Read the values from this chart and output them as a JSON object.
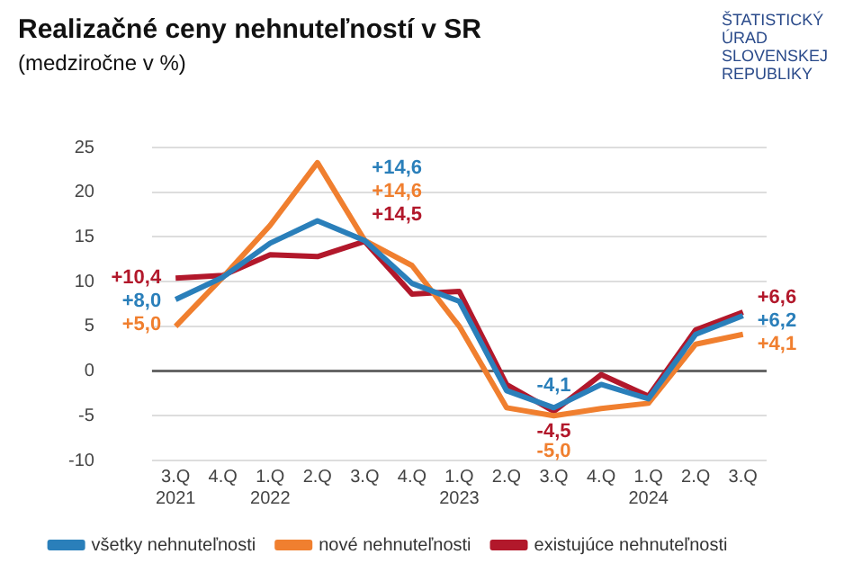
{
  "chart_data": {
    "type": "line",
    "title": "Realizačné ceny nehnuteľností v SR",
    "subtitle": "(medziročne v %)",
    "categories": [
      "3.Q\n2021",
      "4.Q",
      "1.Q\n2022",
      "2.Q",
      "3.Q",
      "4.Q",
      "1.Q\n2023",
      "2.Q",
      "3.Q",
      "4.Q",
      "1.Q\n2024",
      "2.Q",
      "3.Q"
    ],
    "series": [
      {
        "name": "všetky nehnuteľnosti",
        "color": "#2a7fba",
        "values": [
          8.0,
          10.5,
          14.3,
          16.8,
          14.6,
          9.8,
          7.8,
          -2.2,
          -4.1,
          -1.5,
          -3.1,
          4.1,
          6.2
        ],
        "value_labels": [
          "+8,0",
          null,
          null,
          null,
          "+14,6",
          null,
          null,
          null,
          "-4,1",
          null,
          null,
          null,
          "+6,2"
        ]
      },
      {
        "name": "nové nehnuteľnosti",
        "color": "#f07f2f",
        "values": [
          5.0,
          10.5,
          16.3,
          23.3,
          14.6,
          11.8,
          5.0,
          -4.1,
          -5.0,
          -4.2,
          -3.6,
          3.0,
          4.1
        ],
        "value_labels": [
          "+5,0",
          null,
          null,
          null,
          "+14,6",
          null,
          null,
          null,
          "-5,0",
          null,
          null,
          null,
          "+4,1"
        ]
      },
      {
        "name": "existujúce nehnuteľnosti",
        "color": "#b2182b",
        "values": [
          10.4,
          10.7,
          13.0,
          12.8,
          14.5,
          8.6,
          8.9,
          -1.5,
          -4.5,
          -0.4,
          -2.8,
          4.6,
          6.6
        ],
        "value_labels": [
          "+10,4",
          null,
          null,
          null,
          "+14,5",
          null,
          null,
          null,
          "-4,5",
          null,
          null,
          null,
          "+6,6"
        ]
      }
    ],
    "ylim": [
      -10,
      25
    ],
    "yticks": [
      -10,
      -5,
      0,
      5,
      10,
      15,
      20,
      25
    ],
    "grid": "y",
    "legend": "bottom",
    "marker": "none",
    "line_style": "solid",
    "annotations": [
      "ŠTATISTICKÝ\nÚRAD\nSLOVENSKEJ\nREPUBLIKY"
    ]
  }
}
